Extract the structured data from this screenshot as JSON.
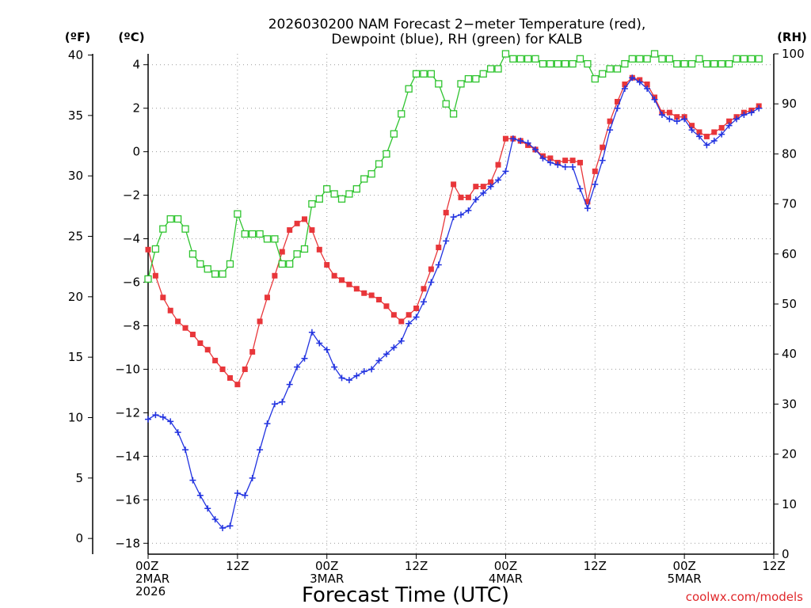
{
  "chart_data": {
    "type": "line",
    "title_line1": "2026030200 NAM Forecast 2−meter Temperature (red),",
    "title_line2": "Dewpoint (blue), RH (green) for KALB",
    "xlabel": "Forecast Time (UTC)",
    "credit": "coolwx.com/models",
    "units": {
      "fahrenheit": "(ºF)",
      "celsius": "(ºC)",
      "rh": "(RH)"
    },
    "x_range_hours": [
      0,
      84
    ],
    "x_ticks": [
      {
        "hour": 0,
        "lines": [
          "00Z",
          "2MAR",
          "2026"
        ]
      },
      {
        "hour": 12,
        "lines": [
          "12Z"
        ]
      },
      {
        "hour": 24,
        "lines": [
          "00Z",
          "3MAR"
        ]
      },
      {
        "hour": 36,
        "lines": [
          "12Z"
        ]
      },
      {
        "hour": 48,
        "lines": [
          "00Z",
          "4MAR"
        ]
      },
      {
        "hour": 60,
        "lines": [
          "12Z"
        ]
      },
      {
        "hour": 72,
        "lines": [
          "00Z",
          "5MAR"
        ]
      },
      {
        "hour": 84,
        "lines": [
          "12Z"
        ]
      }
    ],
    "celsius_axis": {
      "range": [
        -18.5,
        4.5
      ],
      "ticks": [
        "-18",
        "-16",
        "-14",
        "-12",
        "-10",
        "-8",
        "-6",
        "-4",
        "-2",
        "0",
        "2",
        "4"
      ]
    },
    "fahrenheit_axis": {
      "ticks": [
        "0",
        "5",
        "10",
        "15",
        "20",
        "25",
        "30",
        "35",
        "40"
      ]
    },
    "rh_axis": {
      "range": [
        0,
        100
      ],
      "ticks": [
        "0",
        "10",
        "20",
        "30",
        "40",
        "50",
        "60",
        "70",
        "80",
        "90",
        "100"
      ]
    },
    "grid": true,
    "series": [
      {
        "name": "Temperature",
        "color": "#e8363a",
        "marker": "square-filled",
        "unit": "C",
        "points": [
          [
            0,
            -4.5
          ],
          [
            1,
            -5.7
          ],
          [
            2,
            -6.7
          ],
          [
            3,
            -7.3
          ],
          [
            4,
            -7.8
          ],
          [
            5,
            -8.1
          ],
          [
            6,
            -8.4
          ],
          [
            7,
            -8.8
          ],
          [
            8,
            -9.1
          ],
          [
            9,
            -9.6
          ],
          [
            10,
            -10.0
          ],
          [
            11,
            -10.4
          ],
          [
            12,
            -10.7
          ],
          [
            13,
            -10.0
          ],
          [
            14,
            -9.2
          ],
          [
            15,
            -7.8
          ],
          [
            16,
            -6.7
          ],
          [
            17,
            -5.7
          ],
          [
            18,
            -4.6
          ],
          [
            19,
            -3.6
          ],
          [
            20,
            -3.3
          ],
          [
            21,
            -3.1
          ],
          [
            22,
            -3.6
          ],
          [
            23,
            -4.5
          ],
          [
            24,
            -5.2
          ],
          [
            25,
            -5.7
          ],
          [
            26,
            -5.9
          ],
          [
            27,
            -6.1
          ],
          [
            28,
            -6.3
          ],
          [
            29,
            -6.5
          ],
          [
            30,
            -6.6
          ],
          [
            31,
            -6.8
          ],
          [
            32,
            -7.1
          ],
          [
            33,
            -7.5
          ],
          [
            34,
            -7.8
          ],
          [
            35,
            -7.5
          ],
          [
            36,
            -7.2
          ],
          [
            37,
            -6.3
          ],
          [
            38,
            -5.4
          ],
          [
            39,
            -4.4
          ],
          [
            40,
            -2.8
          ],
          [
            41,
            -1.5
          ],
          [
            42,
            -2.1
          ],
          [
            43,
            -2.1
          ],
          [
            44,
            -1.6
          ],
          [
            45,
            -1.6
          ],
          [
            46,
            -1.4
          ],
          [
            47,
            -0.6
          ],
          [
            48,
            0.6
          ],
          [
            49,
            0.6
          ],
          [
            50,
            0.5
          ],
          [
            51,
            0.3
          ],
          [
            52,
            0.1
          ],
          [
            53,
            -0.2
          ],
          [
            54,
            -0.3
          ],
          [
            55,
            -0.5
          ],
          [
            56,
            -0.4
          ],
          [
            57,
            -0.4
          ],
          [
            58,
            -0.5
          ],
          [
            59,
            -2.3
          ],
          [
            60,
            -0.9
          ],
          [
            61,
            0.2
          ],
          [
            62,
            1.4
          ],
          [
            63,
            2.3
          ],
          [
            64,
            3.1
          ],
          [
            65,
            3.4
          ],
          [
            66,
            3.3
          ],
          [
            67,
            3.1
          ],
          [
            68,
            2.5
          ],
          [
            69,
            1.8
          ],
          [
            70,
            1.8
          ],
          [
            71,
            1.6
          ],
          [
            72,
            1.6
          ],
          [
            73,
            1.2
          ],
          [
            74,
            0.9
          ],
          [
            75,
            0.7
          ],
          [
            76,
            0.9
          ],
          [
            77,
            1.1
          ],
          [
            78,
            1.4
          ],
          [
            79,
            1.6
          ],
          [
            80,
            1.8
          ],
          [
            81,
            1.9
          ],
          [
            82,
            2.1
          ]
        ]
      },
      {
        "name": "Dewpoint",
        "color": "#2233e0",
        "marker": "plus",
        "unit": "C",
        "points": [
          [
            0,
            -12.3
          ],
          [
            1,
            -12.1
          ],
          [
            2,
            -12.2
          ],
          [
            3,
            -12.4
          ],
          [
            4,
            -12.9
          ],
          [
            5,
            -13.7
          ],
          [
            6,
            -15.1
          ],
          [
            7,
            -15.8
          ],
          [
            8,
            -16.4
          ],
          [
            9,
            -16.9
          ],
          [
            10,
            -17.3
          ],
          [
            11,
            -17.2
          ],
          [
            12,
            -15.7
          ],
          [
            13,
            -15.8
          ],
          [
            14,
            -15.0
          ],
          [
            15,
            -13.7
          ],
          [
            16,
            -12.5
          ],
          [
            17,
            -11.6
          ],
          [
            18,
            -11.5
          ],
          [
            19,
            -10.7
          ],
          [
            20,
            -9.9
          ],
          [
            21,
            -9.5
          ],
          [
            22,
            -8.3
          ],
          [
            23,
            -8.8
          ],
          [
            24,
            -9.1
          ],
          [
            25,
            -9.9
          ],
          [
            26,
            -10.4
          ],
          [
            27,
            -10.5
          ],
          [
            28,
            -10.3
          ],
          [
            29,
            -10.1
          ],
          [
            30,
            -10.0
          ],
          [
            31,
            -9.6
          ],
          [
            32,
            -9.3
          ],
          [
            33,
            -9.0
          ],
          [
            34,
            -8.7
          ],
          [
            35,
            -7.9
          ],
          [
            36,
            -7.6
          ],
          [
            37,
            -6.9
          ],
          [
            38,
            -6.0
          ],
          [
            39,
            -5.2
          ],
          [
            40,
            -4.1
          ],
          [
            41,
            -3.0
          ],
          [
            42,
            -2.9
          ],
          [
            43,
            -2.7
          ],
          [
            44,
            -2.2
          ],
          [
            45,
            -1.9
          ],
          [
            46,
            -1.6
          ],
          [
            47,
            -1.3
          ],
          [
            48,
            -0.9
          ],
          [
            49,
            0.6
          ],
          [
            50,
            0.5
          ],
          [
            51,
            0.4
          ],
          [
            52,
            0.1
          ],
          [
            53,
            -0.3
          ],
          [
            54,
            -0.5
          ],
          [
            55,
            -0.6
          ],
          [
            56,
            -0.7
          ],
          [
            57,
            -0.7
          ],
          [
            58,
            -1.7
          ],
          [
            59,
            -2.6
          ],
          [
            60,
            -1.5
          ],
          [
            61,
            -0.4
          ],
          [
            62,
            1.0
          ],
          [
            63,
            2.0
          ],
          [
            64,
            2.9
          ],
          [
            65,
            3.4
          ],
          [
            66,
            3.2
          ],
          [
            67,
            2.9
          ],
          [
            68,
            2.4
          ],
          [
            69,
            1.7
          ],
          [
            70,
            1.5
          ],
          [
            71,
            1.4
          ],
          [
            72,
            1.5
          ],
          [
            73,
            1.0
          ],
          [
            74,
            0.7
          ],
          [
            75,
            0.3
          ],
          [
            76,
            0.5
          ],
          [
            77,
            0.8
          ],
          [
            78,
            1.2
          ],
          [
            79,
            1.5
          ],
          [
            80,
            1.7
          ],
          [
            81,
            1.8
          ],
          [
            82,
            2.0
          ]
        ]
      },
      {
        "name": "RH",
        "color": "#2fc42f",
        "marker": "square-open",
        "unit": "%",
        "points": [
          [
            0,
            55
          ],
          [
            1,
            61
          ],
          [
            2,
            65
          ],
          [
            3,
            67
          ],
          [
            4,
            67
          ],
          [
            5,
            65
          ],
          [
            6,
            60
          ],
          [
            7,
            58
          ],
          [
            8,
            57
          ],
          [
            9,
            56
          ],
          [
            10,
            56
          ],
          [
            11,
            58
          ],
          [
            12,
            68
          ],
          [
            13,
            64
          ],
          [
            14,
            64
          ],
          [
            15,
            64
          ],
          [
            16,
            63
          ],
          [
            17,
            63
          ],
          [
            18,
            58
          ],
          [
            19,
            58
          ],
          [
            20,
            60
          ],
          [
            21,
            61
          ],
          [
            22,
            70
          ],
          [
            23,
            71
          ],
          [
            24,
            73
          ],
          [
            25,
            72
          ],
          [
            26,
            71
          ],
          [
            27,
            72
          ],
          [
            28,
            73
          ],
          [
            29,
            75
          ],
          [
            30,
            76
          ],
          [
            31,
            78
          ],
          [
            32,
            80
          ],
          [
            33,
            84
          ],
          [
            34,
            88
          ],
          [
            35,
            93
          ],
          [
            36,
            96
          ],
          [
            37,
            96
          ],
          [
            38,
            96
          ],
          [
            39,
            94
          ],
          [
            40,
            90
          ],
          [
            41,
            88
          ],
          [
            42,
            94
          ],
          [
            43,
            95
          ],
          [
            44,
            95
          ],
          [
            45,
            96
          ],
          [
            46,
            97
          ],
          [
            47,
            97
          ],
          [
            48,
            100
          ],
          [
            49,
            99
          ],
          [
            50,
            99
          ],
          [
            51,
            99
          ],
          [
            52,
            99
          ],
          [
            53,
            98
          ],
          [
            54,
            98
          ],
          [
            55,
            98
          ],
          [
            56,
            98
          ],
          [
            57,
            98
          ],
          [
            58,
            99
          ],
          [
            59,
            98
          ],
          [
            60,
            95
          ],
          [
            61,
            96
          ],
          [
            62,
            97
          ],
          [
            63,
            97
          ],
          [
            64,
            98
          ],
          [
            65,
            99
          ],
          [
            66,
            99
          ],
          [
            67,
            99
          ],
          [
            68,
            100
          ],
          [
            69,
            99
          ],
          [
            70,
            99
          ],
          [
            71,
            98
          ],
          [
            72,
            98
          ],
          [
            73,
            98
          ],
          [
            74,
            99
          ],
          [
            75,
            98
          ],
          [
            76,
            98
          ],
          [
            77,
            98
          ],
          [
            78,
            98
          ],
          [
            79,
            99
          ],
          [
            80,
            99
          ],
          [
            81,
            99
          ],
          [
            82,
            99
          ]
        ]
      }
    ]
  }
}
